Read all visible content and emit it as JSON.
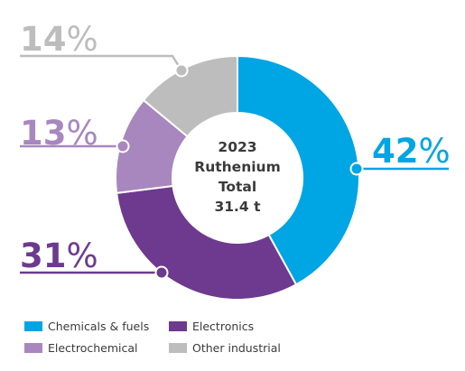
{
  "chart_data": {
    "type": "pie",
    "center_text": [
      "2023",
      "Ruthenium",
      "Total",
      "31.4 t"
    ],
    "slices": [
      {
        "name": "Chemicals & fuels",
        "value": 42,
        "label": "42",
        "unit": "%",
        "color": "#00a5e3"
      },
      {
        "name": "Electronics",
        "value": 31,
        "label": "31",
        "unit": "%",
        "color": "#6d3a8f"
      },
      {
        "name": "Electrochemical",
        "value": 13,
        "label": "13",
        "unit": "%",
        "color": "#a887bf"
      },
      {
        "name": "Other industrial",
        "value": 14,
        "label": "14",
        "unit": "%",
        "color": "#bdbdbd"
      }
    ],
    "legend": [
      {
        "label": "Chemicals & fuels",
        "color": "#00a5e3"
      },
      {
        "label": "Electronics",
        "color": "#6d3a8f"
      },
      {
        "label": "Electrochemical",
        "color": "#a887bf"
      },
      {
        "label": "Other industrial",
        "color": "#bdbdbd"
      }
    ],
    "legend_position": "bottom"
  }
}
